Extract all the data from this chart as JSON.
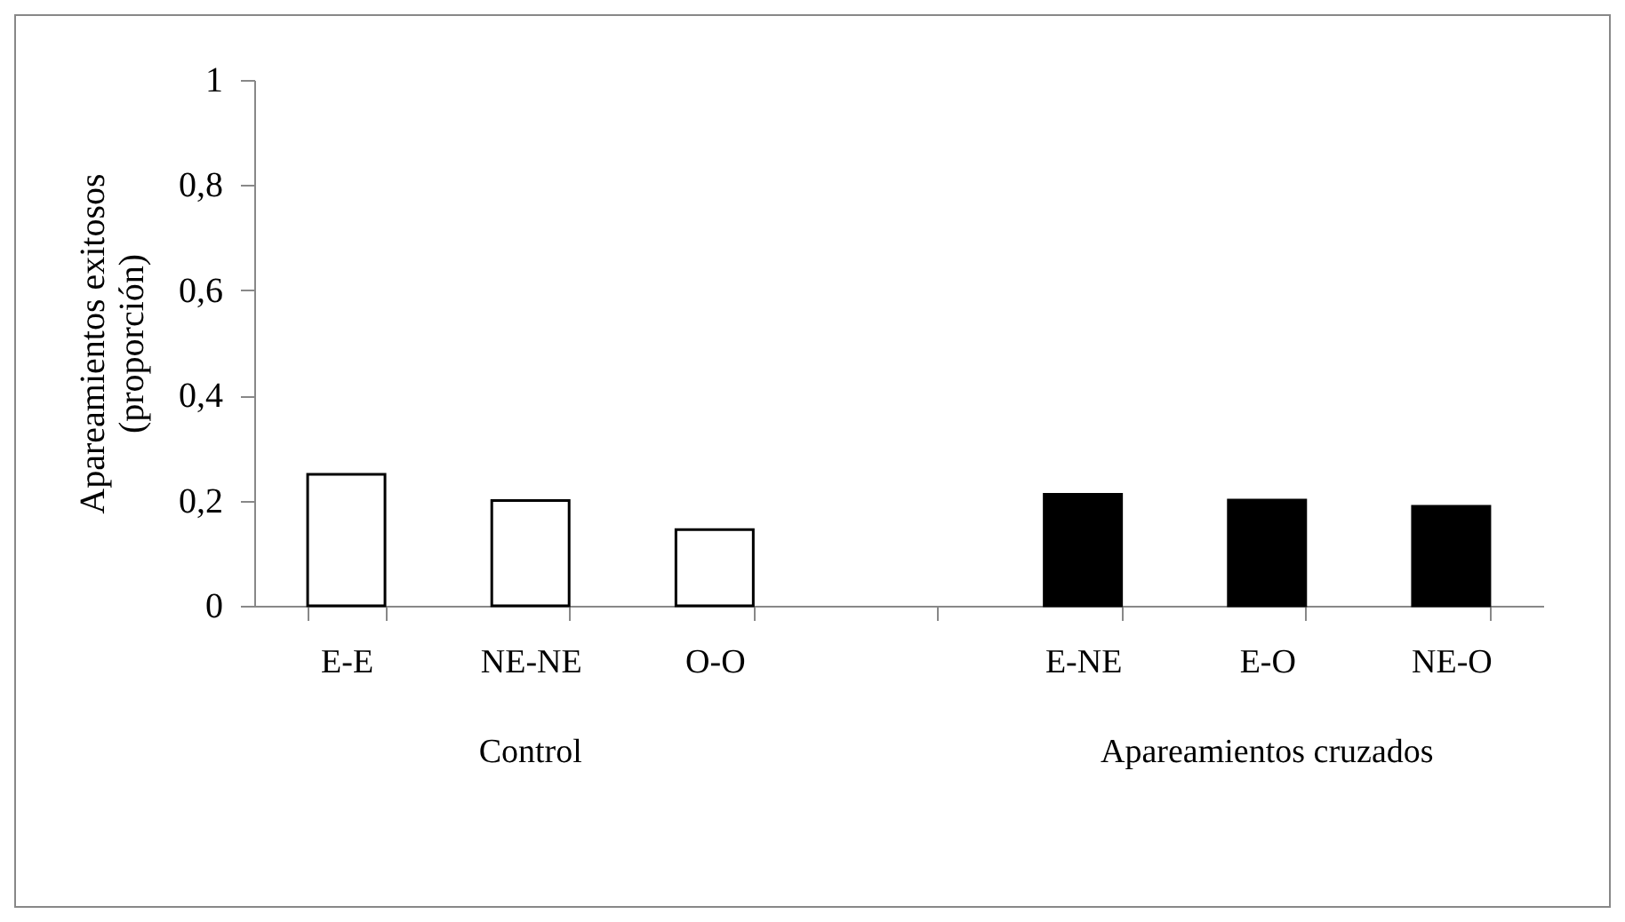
{
  "chart_data": {
    "type": "bar",
    "ylabel": "Apareamientos exitosos\n(proporción)",
    "categories": [
      "E-E",
      "NE-NE",
      "O-O",
      null,
      "E-NE",
      "E-O",
      "NE-O"
    ],
    "values": [
      0.25,
      0.2,
      0.145,
      null,
      0.212,
      0.201,
      0.189
    ],
    "colors": [
      "#ffffff",
      "#ffffff",
      "#ffffff",
      "#ffffff",
      "#000000",
      "#000000",
      "#000000"
    ],
    "ylim": [
      0,
      1
    ],
    "yticks": [
      0,
      {
        "value": 0.2,
        "label": "0,2"
      },
      {
        "value": 0.4,
        "label": "0,4"
      },
      {
        "value": 0.6,
        "label": "0,6"
      },
      {
        "value": 0.8,
        "label": "0,8"
      },
      1
    ],
    "annotations": [
      "Control",
      "Apareamientos cruzados"
    ],
    "grid": false
  }
}
